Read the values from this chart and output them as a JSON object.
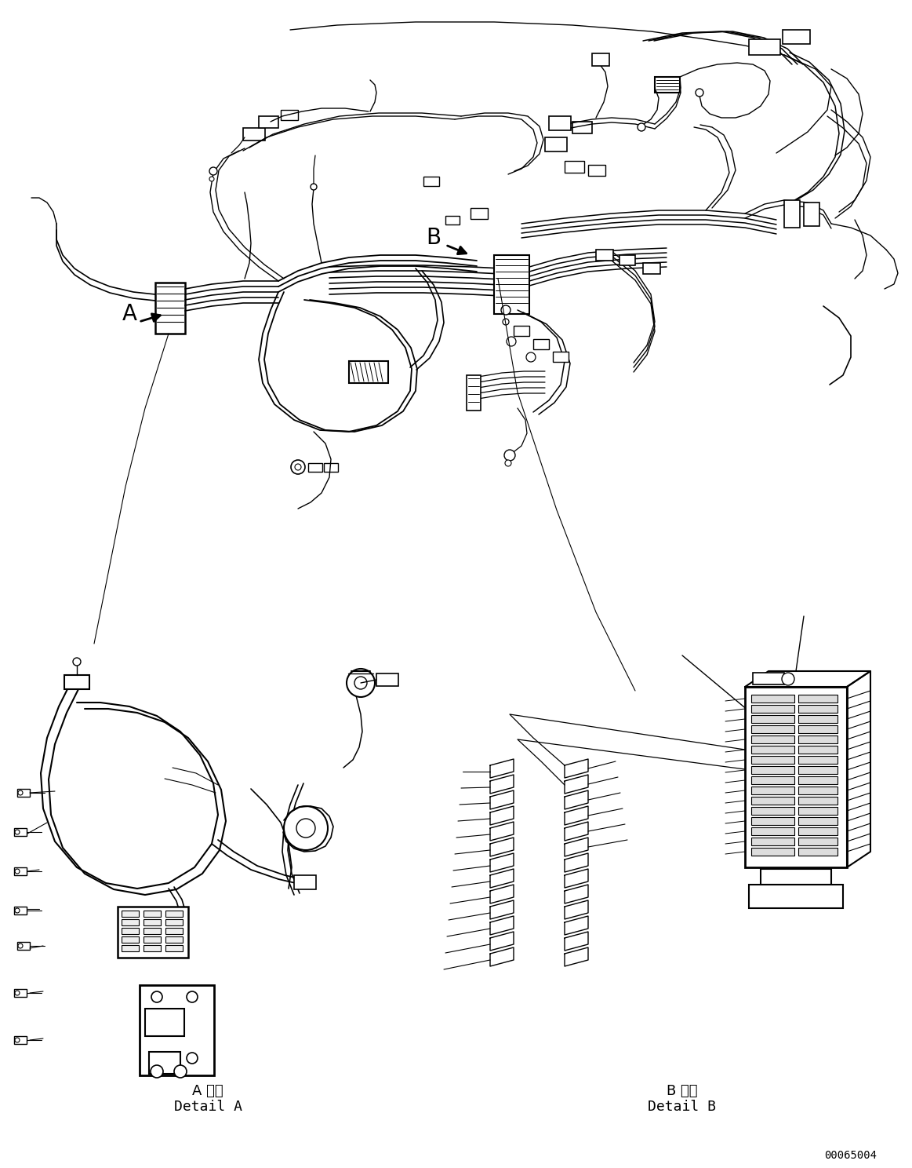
{
  "background_color": "#ffffff",
  "line_color": "#000000",
  "fig_width": 11.63,
  "fig_height": 14.88,
  "dpi": 100,
  "label_A": "A",
  "label_B": "B",
  "detail_A_jp": "A 詳細",
  "detail_A_en": "Detail A",
  "detail_B_jp": "B 詳細",
  "detail_B_en": "Detail B",
  "part_number": "00065004"
}
